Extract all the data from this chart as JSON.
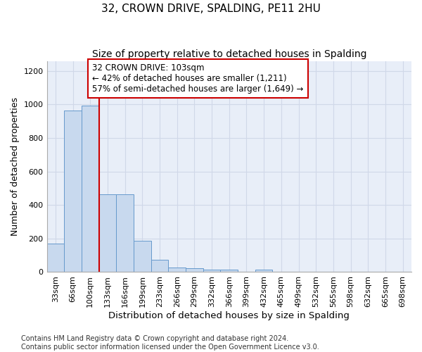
{
  "title": "32, CROWN DRIVE, SPALDING, PE11 2HU",
  "subtitle": "Size of property relative to detached houses in Spalding",
  "xlabel": "Distribution of detached houses by size in Spalding",
  "ylabel": "Number of detached properties",
  "bar_color": "#c8d9ee",
  "bar_edge_color": "#6699cc",
  "background_color": "#e8eef8",
  "grid_color": "#d0d8e8",
  "categories": [
    "33sqm",
    "66sqm",
    "100sqm",
    "133sqm",
    "166sqm",
    "199sqm",
    "233sqm",
    "266sqm",
    "299sqm",
    "332sqm",
    "366sqm",
    "399sqm",
    "432sqm",
    "465sqm",
    "499sqm",
    "532sqm",
    "565sqm",
    "598sqm",
    "632sqm",
    "665sqm",
    "698sqm"
  ],
  "values": [
    170,
    965,
    995,
    465,
    465,
    185,
    72,
    28,
    22,
    15,
    13,
    0,
    13,
    0,
    0,
    0,
    0,
    0,
    0,
    0,
    0
  ],
  "ylim": [
    0,
    1260
  ],
  "yticks": [
    0,
    200,
    400,
    600,
    800,
    1000,
    1200
  ],
  "property_line_bin": 2,
  "annotation_text": "32 CROWN DRIVE: 103sqm\n← 42% of detached houses are smaller (1,211)\n57% of semi-detached houses are larger (1,649) →",
  "annotation_box_color": "#ffffff",
  "annotation_border_color": "#cc0000",
  "vline_color": "#cc0000",
  "footer_text": "Contains HM Land Registry data © Crown copyright and database right 2024.\nContains public sector information licensed under the Open Government Licence v3.0.",
  "title_fontsize": 11,
  "subtitle_fontsize": 10,
  "xlabel_fontsize": 9.5,
  "ylabel_fontsize": 9,
  "annotation_fontsize": 8.5,
  "tick_fontsize": 8,
  "footer_fontsize": 7
}
